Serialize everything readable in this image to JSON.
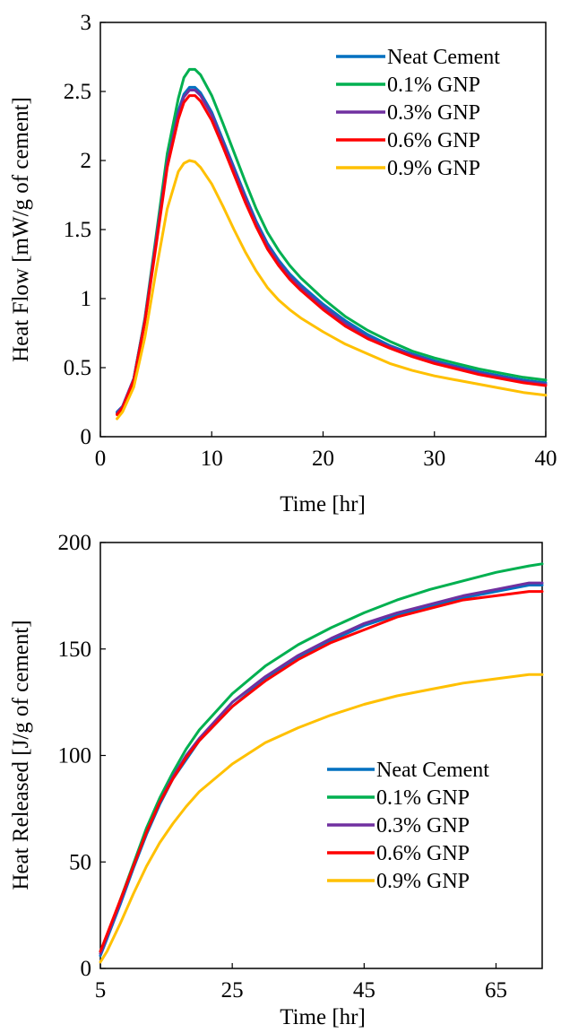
{
  "chart_data": [
    {
      "type": "line",
      "title": "",
      "xlabel": "Time [hr]",
      "ylabel": "Heat Flow [mW/g of cement]",
      "xlim": [
        0,
        40
      ],
      "ylim": [
        0,
        3
      ],
      "xticks": [
        0,
        10,
        20,
        30,
        40
      ],
      "yticks": [
        0,
        0.5,
        1,
        1.5,
        2,
        2.5,
        3
      ],
      "xtick_labels": [
        "0",
        "10",
        "20",
        "30",
        "40"
      ],
      "ytick_labels": [
        "0",
        "0.5",
        "1",
        "1.5",
        "2",
        "2.5",
        "3"
      ],
      "grid": false,
      "legend_position": "top-right",
      "series": [
        {
          "name": "Neat Cement",
          "color": "#0070C0",
          "x": [
            1.5,
            2,
            3,
            4,
            5,
            6,
            7,
            7.5,
            8,
            8.5,
            9,
            10,
            11,
            12,
            13,
            14,
            15,
            16,
            17,
            18,
            20,
            22,
            24,
            26,
            28,
            30,
            32,
            34,
            36,
            38,
            40
          ],
          "y": [
            0.18,
            0.22,
            0.42,
            0.85,
            1.42,
            2.0,
            2.36,
            2.48,
            2.53,
            2.53,
            2.49,
            2.35,
            2.15,
            1.95,
            1.75,
            1.56,
            1.4,
            1.28,
            1.18,
            1.1,
            0.96,
            0.84,
            0.74,
            0.66,
            0.6,
            0.55,
            0.51,
            0.47,
            0.44,
            0.41,
            0.39
          ]
        },
        {
          "name": "0.1% GNP",
          "color": "#00B050",
          "x": [
            1.5,
            2,
            3,
            4,
            5,
            6,
            7,
            7.5,
            8,
            8.5,
            9,
            10,
            11,
            12,
            13,
            14,
            15,
            16,
            17,
            18,
            20,
            22,
            24,
            26,
            28,
            30,
            32,
            34,
            36,
            38,
            40
          ],
          "y": [
            0.17,
            0.21,
            0.42,
            0.86,
            1.45,
            2.05,
            2.45,
            2.6,
            2.66,
            2.66,
            2.62,
            2.47,
            2.27,
            2.06,
            1.85,
            1.65,
            1.48,
            1.35,
            1.24,
            1.15,
            1.0,
            0.87,
            0.77,
            0.69,
            0.62,
            0.57,
            0.53,
            0.49,
            0.46,
            0.43,
            0.41
          ]
        },
        {
          "name": "0.3% GNP",
          "color": "#7030A0",
          "x": [
            1.5,
            2,
            3,
            4,
            5,
            6,
            7,
            7.5,
            8,
            8.5,
            9,
            10,
            11,
            12,
            13,
            14,
            15,
            16,
            17,
            18,
            20,
            22,
            24,
            26,
            28,
            30,
            32,
            34,
            36,
            38,
            40
          ],
          "y": [
            0.17,
            0.22,
            0.42,
            0.85,
            1.42,
            1.98,
            2.34,
            2.46,
            2.51,
            2.51,
            2.47,
            2.33,
            2.13,
            1.93,
            1.73,
            1.54,
            1.38,
            1.26,
            1.16,
            1.08,
            0.94,
            0.82,
            0.72,
            0.65,
            0.59,
            0.54,
            0.5,
            0.46,
            0.43,
            0.4,
            0.38
          ]
        },
        {
          "name": "0.6% GNP",
          "color": "#FF0000",
          "x": [
            1.5,
            2,
            3,
            4,
            5,
            6,
            7,
            7.5,
            8,
            8.5,
            9,
            10,
            11,
            12,
            13,
            14,
            15,
            16,
            17,
            18,
            20,
            22,
            24,
            26,
            28,
            30,
            32,
            34,
            36,
            38,
            40
          ],
          "y": [
            0.16,
            0.21,
            0.41,
            0.83,
            1.38,
            1.95,
            2.3,
            2.42,
            2.47,
            2.47,
            2.43,
            2.29,
            2.1,
            1.9,
            1.7,
            1.52,
            1.36,
            1.24,
            1.14,
            1.06,
            0.92,
            0.8,
            0.71,
            0.64,
            0.58,
            0.53,
            0.49,
            0.45,
            0.42,
            0.39,
            0.37
          ]
        },
        {
          "name": "0.9% GNP",
          "color": "#FFC000",
          "x": [
            1.5,
            2,
            3,
            4,
            5,
            6,
            7,
            7.5,
            8,
            8.5,
            9,
            10,
            11,
            12,
            13,
            14,
            15,
            16,
            17,
            18,
            20,
            22,
            24,
            26,
            28,
            30,
            32,
            34,
            36,
            38,
            40
          ],
          "y": [
            0.13,
            0.18,
            0.36,
            0.72,
            1.2,
            1.65,
            1.92,
            1.98,
            2.0,
            1.99,
            1.95,
            1.83,
            1.67,
            1.5,
            1.34,
            1.2,
            1.08,
            0.99,
            0.92,
            0.86,
            0.76,
            0.67,
            0.6,
            0.53,
            0.48,
            0.44,
            0.41,
            0.38,
            0.35,
            0.32,
            0.3
          ]
        }
      ]
    },
    {
      "type": "line",
      "title": "",
      "xlabel": "Time [hr]",
      "ylabel": "Heat Released [J/g of cement]",
      "xlim": [
        5,
        72
      ],
      "ylim": [
        0,
        200
      ],
      "xticks": [
        5,
        25,
        45,
        65
      ],
      "yticks": [
        0,
        50,
        100,
        150,
        200
      ],
      "xtick_labels": [
        "5",
        "25",
        "45",
        "65"
      ],
      "ytick_labels": [
        "0",
        "50",
        "100",
        "150",
        "200"
      ],
      "grid": false,
      "legend_position": "bottom-right",
      "series": [
        {
          "name": "Neat Cement",
          "color": "#0070C0",
          "x": [
            5,
            6,
            8,
            10,
            12,
            14,
            16,
            18,
            20,
            25,
            30,
            35,
            40,
            45,
            50,
            55,
            60,
            65,
            70,
            72
          ],
          "y": [
            6,
            14,
            30,
            47,
            63,
            77,
            89,
            98,
            107,
            123,
            136,
            146,
            154,
            161,
            166,
            170,
            174,
            177,
            180,
            180
          ]
        },
        {
          "name": "0.1% GNP",
          "color": "#00B050",
          "x": [
            5,
            6,
            8,
            10,
            12,
            14,
            16,
            18,
            20,
            25,
            30,
            35,
            40,
            45,
            50,
            55,
            60,
            65,
            70,
            72
          ],
          "y": [
            8,
            15,
            32,
            49,
            66,
            80,
            92,
            103,
            112,
            129,
            142,
            152,
            160,
            167,
            173,
            178,
            182,
            186,
            189,
            190
          ]
        },
        {
          "name": "0.3% GNP",
          "color": "#7030A0",
          "x": [
            5,
            6,
            8,
            10,
            12,
            14,
            16,
            18,
            20,
            25,
            30,
            35,
            40,
            45,
            50,
            55,
            60,
            65,
            70,
            72
          ],
          "y": [
            7,
            15,
            31,
            48,
            64,
            78,
            90,
            100,
            108,
            125,
            137,
            147,
            155,
            162,
            167,
            171,
            175,
            178,
            181,
            181
          ]
        },
        {
          "name": "0.6% GNP",
          "color": "#FF0000",
          "x": [
            5,
            6,
            8,
            10,
            12,
            14,
            16,
            18,
            20,
            25,
            30,
            35,
            40,
            45,
            50,
            55,
            60,
            65,
            70,
            72
          ],
          "y": [
            8,
            16,
            32,
            48,
            64,
            78,
            89,
            99,
            107,
            123,
            135,
            145,
            153,
            159,
            165,
            169,
            173,
            175,
            177,
            177
          ]
        },
        {
          "name": "0.9% GNP",
          "color": "#FFC000",
          "x": [
            5,
            6,
            8,
            10,
            12,
            14,
            16,
            18,
            20,
            25,
            30,
            35,
            40,
            45,
            50,
            55,
            60,
            65,
            70,
            72
          ],
          "y": [
            3,
            8,
            21,
            35,
            48,
            59,
            68,
            76,
            83,
            96,
            106,
            113,
            119,
            124,
            128,
            131,
            134,
            136,
            138,
            138
          ]
        }
      ]
    }
  ]
}
